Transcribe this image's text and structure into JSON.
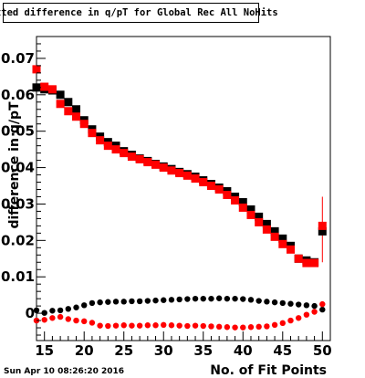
{
  "title": "Fitted difference in q/pT for Global Rec All NoHits",
  "footer": "Sun Apr 10 08:26:20 2016",
  "colors": {
    "black_series": "#000000",
    "red_series": "#ff0000",
    "frame": "#000000"
  },
  "chart_data": {
    "type": "scatter",
    "title": "Fitted difference in q/pT for Global Rec All NoHits",
    "xlabel": "No. of Fit Points",
    "ylabel": "difference in q/pT",
    "xlim": [
      14,
      51
    ],
    "ylim": [
      -0.0075,
      0.076
    ],
    "x_ticks": [
      15,
      20,
      25,
      30,
      35,
      40,
      45,
      50
    ],
    "x_tick_labels": [
      "15",
      "20",
      "25",
      "30",
      "35",
      "40",
      "45",
      "50"
    ],
    "y_ticks": [
      0,
      0.01,
      0.02,
      0.03,
      0.04,
      0.05,
      0.06,
      0.07
    ],
    "y_tick_labels": [
      "0",
      "0.01",
      "0.02",
      "0.03",
      "0.04",
      "0.05",
      "0.06",
      "0.07"
    ],
    "x": [
      14,
      15,
      16,
      17,
      18,
      19,
      20,
      21,
      22,
      23,
      24,
      25,
      26,
      27,
      28,
      29,
      30,
      31,
      32,
      33,
      34,
      35,
      36,
      37,
      38,
      39,
      40,
      41,
      42,
      43,
      44,
      45,
      46,
      47,
      48,
      49,
      50
    ],
    "series": [
      {
        "marker": "square",
        "color": "#000000",
        "values": [
          0.062,
          0.0615,
          0.0612,
          0.06,
          0.058,
          0.056,
          0.053,
          0.0505,
          0.0485,
          0.047,
          0.046,
          0.0445,
          0.0435,
          0.0425,
          0.0418,
          0.041,
          0.0403,
          0.0396,
          0.0388,
          0.0382,
          0.0375,
          0.0365,
          0.0355,
          0.0345,
          0.0335,
          0.032,
          0.0305,
          0.0285,
          0.0265,
          0.0245,
          0.0225,
          0.0205,
          0.0185,
          0.015,
          0.0145,
          0.014,
          0.0225
        ]
      },
      {
        "marker": "square",
        "color": "#ff0000",
        "values": [
          0.067,
          0.0622,
          0.0615,
          0.0575,
          0.0555,
          0.054,
          0.052,
          0.0495,
          0.0475,
          0.046,
          0.045,
          0.044,
          0.043,
          0.0423,
          0.0415,
          0.0408,
          0.04,
          0.0392,
          0.0385,
          0.0378,
          0.037,
          0.036,
          0.035,
          0.034,
          0.0325,
          0.031,
          0.029,
          0.027,
          0.025,
          0.023,
          0.021,
          0.019,
          0.0175,
          0.015,
          0.0138,
          0.0138,
          0.024
        ]
      },
      {
        "marker": "circle",
        "color": "#000000",
        "values": [
          0.0008,
          0.0001,
          0.0007,
          0.0008,
          0.0012,
          0.0016,
          0.0022,
          0.0028,
          0.003,
          0.0031,
          0.0032,
          0.0032,
          0.0033,
          0.0033,
          0.0034,
          0.0035,
          0.0036,
          0.0037,
          0.0038,
          0.0039,
          0.004,
          0.004,
          0.004,
          0.0041,
          0.004,
          0.004,
          0.0039,
          0.0037,
          0.0034,
          0.0032,
          0.003,
          0.0028,
          0.0026,
          0.0024,
          0.0022,
          0.002,
          0.001
        ]
      },
      {
        "marker": "circle",
        "color": "#ff0000",
        "values": [
          -0.002,
          -0.0018,
          -0.0013,
          -0.001,
          -0.0016,
          -0.002,
          -0.0022,
          -0.0026,
          -0.0034,
          -0.0035,
          -0.0034,
          -0.0033,
          -0.0034,
          -0.0034,
          -0.0033,
          -0.0033,
          -0.0032,
          -0.0033,
          -0.0034,
          -0.0035,
          -0.0034,
          -0.0035,
          -0.0036,
          -0.0037,
          -0.0038,
          -0.0039,
          -0.0039,
          -0.0038,
          -0.0037,
          -0.0036,
          -0.0032,
          -0.0027,
          -0.002,
          -0.0013,
          -0.0004,
          0.0004,
          0.0025
        ]
      }
    ],
    "error_bars": {
      "x": [
        50
      ],
      "series_index": 1,
      "low": [
        0.014
      ],
      "high": [
        0.032
      ]
    }
  }
}
